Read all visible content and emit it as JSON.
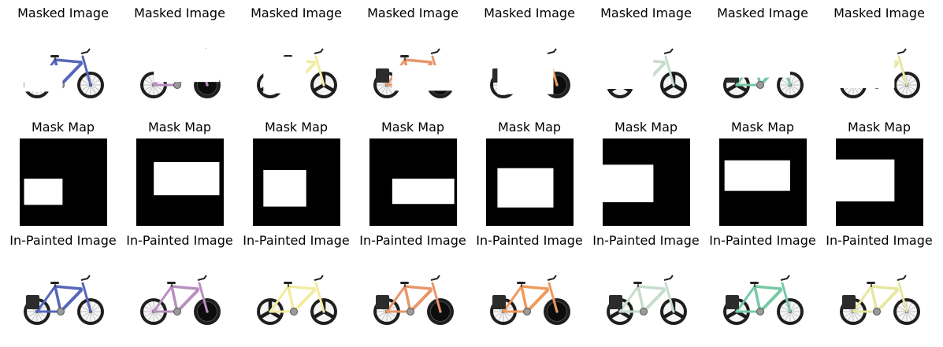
{
  "rows": [
    {
      "title": "Masked Image",
      "kind": "masked"
    },
    {
      "title": "Mask Map",
      "kind": "mask"
    },
    {
      "title": "In-Painted Image",
      "kind": "inpainted"
    }
  ],
  "samples": [
    {
      "color": "#5566bb",
      "bag": true,
      "rear": "spoke",
      "front": "spoke",
      "mask": [
        0.05,
        0.46,
        0.49,
        0.76
      ]
    },
    {
      "color": "#b98fc0",
      "bag": false,
      "rear": "spoke",
      "front": "solid",
      "mask": [
        0.2,
        0.27,
        0.95,
        0.65
      ]
    },
    {
      "color": "#f2eca0",
      "bag": false,
      "rear": "tri",
      "front": "tri",
      "mask": [
        0.12,
        0.36,
        0.61,
        0.78
      ]
    },
    {
      "color": "#e8966a",
      "bag": true,
      "rear": "spoke",
      "front": "solid",
      "mask": [
        0.26,
        0.46,
        0.97,
        0.75
      ]
    },
    {
      "color": "#ef9a5c",
      "bag": true,
      "rear": "spoke",
      "front": "solid",
      "mask": [
        0.13,
        0.34,
        0.77,
        0.79
      ]
    },
    {
      "color": "#c6dccc",
      "bag": true,
      "rear": "tri",
      "front": "tri",
      "mask": [
        0.0,
        0.3,
        0.58,
        0.73
      ]
    },
    {
      "color": "#77c9a6",
      "bag": true,
      "rear": "tri",
      "front": "spoke",
      "mask": [
        0.06,
        0.25,
        0.81,
        0.6
      ]
    },
    {
      "color": "#e6e7a0",
      "bag": true,
      "rear": "spoke",
      "front": "spoke",
      "mask": [
        0.0,
        0.24,
        0.67,
        0.72
      ]
    }
  ]
}
